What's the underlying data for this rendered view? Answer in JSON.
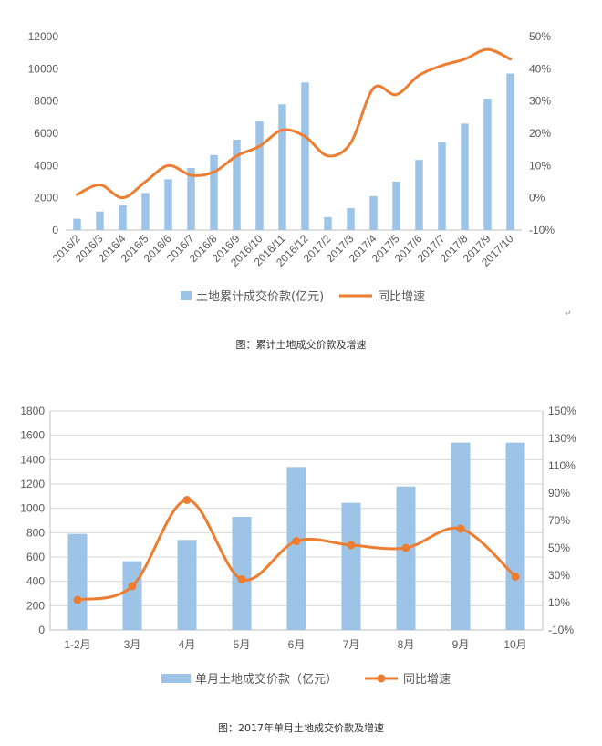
{
  "chart_data": [
    {
      "type": "bar",
      "categories": [
        "2016/2",
        "2016/3",
        "2016/4",
        "2016/5",
        "2016/6",
        "2016/7",
        "2016/8",
        "2016/9",
        "2016/10",
        "2016/11",
        "2016/12",
        "2017/2",
        "2017/3",
        "2017/4",
        "2017/5",
        "2017/6",
        "2017/7",
        "2017/8",
        "2017/9",
        "2017/10"
      ],
      "series": [
        {
          "name": "土地累计成交价款(亿元)",
          "type": "bar",
          "axis": "left",
          "values": [
            700,
            1150,
            1550,
            2300,
            3150,
            3850,
            4650,
            5600,
            6750,
            7800,
            9150,
            800,
            1350,
            2100,
            3000,
            4350,
            5450,
            6600,
            8150,
            9700
          ]
        },
        {
          "name": "同比增速",
          "type": "line",
          "axis": "right",
          "values": [
            1,
            4,
            0,
            5,
            10,
            7,
            8,
            13,
            16,
            21,
            19,
            13,
            17,
            34,
            32,
            38,
            41,
            43,
            46,
            43
          ]
        }
      ],
      "ylim": [
        0,
        12000
      ],
      "y_ticks": [
        "0",
        "2000",
        "4000",
        "6000",
        "8000",
        "10000",
        "12000"
      ],
      "y2lim": [
        -10,
        50
      ],
      "y2_ticks": [
        "-10%",
        "0%",
        "10%",
        "20%",
        "30%",
        "40%",
        "50%"
      ],
      "legend": "bottom",
      "title": "",
      "xlabel": "",
      "ylabel": "",
      "colors": {
        "bar": "#9dc3e6",
        "line": "#ed7d31"
      }
    },
    {
      "type": "bar",
      "categories": [
        "1-2月",
        "3月",
        "4月",
        "5月",
        "6月",
        "7月",
        "8月",
        "9月",
        "10月"
      ],
      "series": [
        {
          "name": "单月土地成交价款（亿元）",
          "type": "bar",
          "axis": "left",
          "values": [
            790,
            565,
            740,
            930,
            1340,
            1045,
            1180,
            1540,
            1540
          ]
        },
        {
          "name": "同比增速",
          "type": "line",
          "axis": "right",
          "values": [
            12,
            22,
            85,
            27,
            55,
            52,
            50,
            64,
            29
          ]
        }
      ],
      "ylim": [
        0,
        1800
      ],
      "y_ticks": [
        "0",
        "200",
        "400",
        "600",
        "800",
        "1000",
        "1200",
        "1400",
        "1600",
        "1800"
      ],
      "y2lim": [
        -10,
        150
      ],
      "y2_ticks": [
        "-10%",
        "10%",
        "30%",
        "50%",
        "70%",
        "90%",
        "110%",
        "130%",
        "150%"
      ],
      "legend": "bottom",
      "title": "",
      "xlabel": "",
      "ylabel": "",
      "colors": {
        "bar": "#9dc3e6",
        "line": "#ed7d31"
      }
    }
  ],
  "captions": [
    "图：累计土地成交价款及增速",
    "图：2017年单月土地成交价款及增速"
  ],
  "stray_mark": "↵"
}
